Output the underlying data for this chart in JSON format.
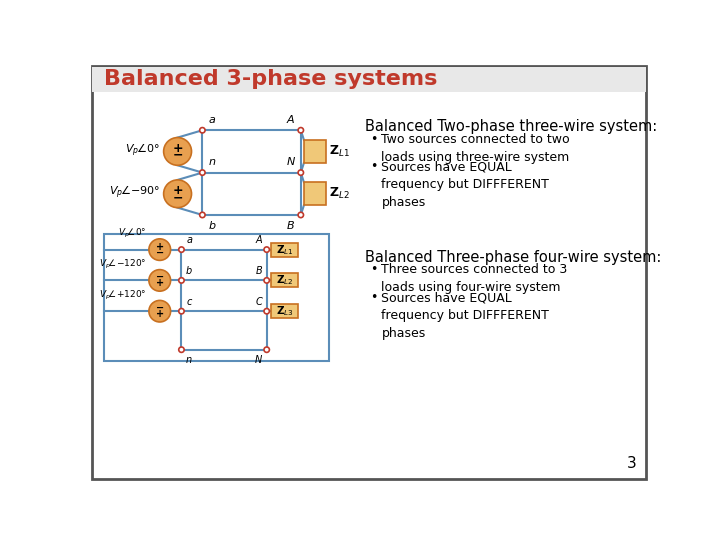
{
  "title": "Balanced 3-phase systems",
  "title_color": "#C0392B",
  "bg_color": "#FFFFFF",
  "slide_border_color": "#555555",
  "page_number": "3",
  "section1_heading": "Balanced Two-phase three-wire system:",
  "section1_bullets": [
    "Two sources connected to two\nloads using three-wire system",
    "Sources have EQUAL\nfrequency but DIFFFERENT\nphases"
  ],
  "section2_heading": "Balanced Three-phase four-wire system:",
  "section2_bullets": [
    "Three sources connected to 3\nloads using four-wire system",
    "Sources have EQUAL\nfrequency but DIFFFERENT\nphases"
  ],
  "wire_color": "#5B8DB8",
  "node_color": "#C0392B",
  "source_color": "#E8A050",
  "load_color": "#F0C878",
  "load_border_color": "#C87020",
  "text_color": "#000000"
}
